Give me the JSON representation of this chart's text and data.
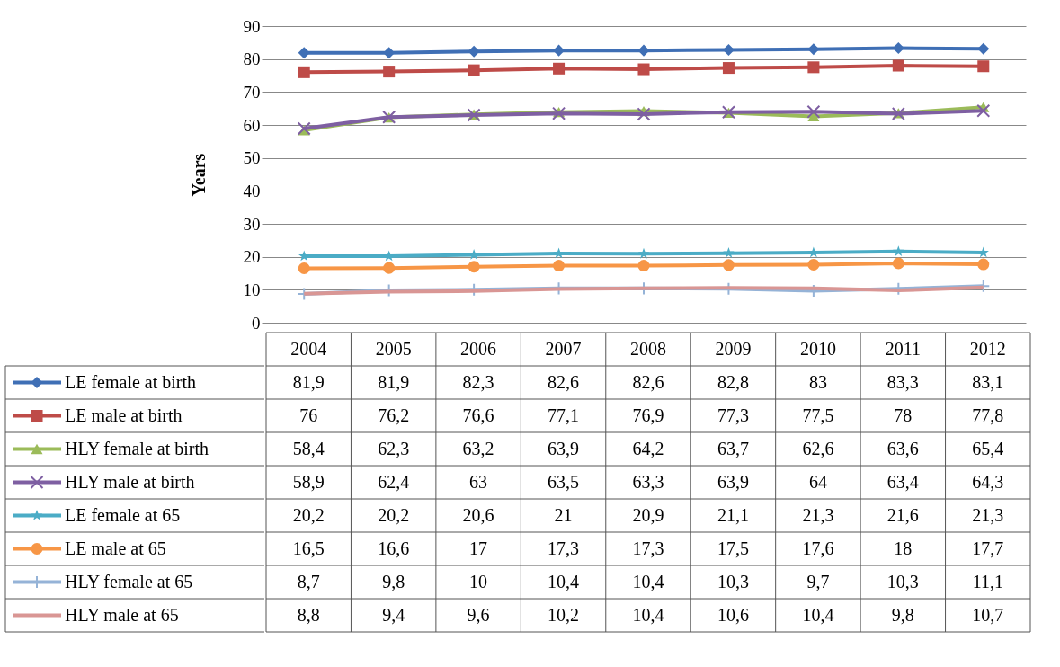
{
  "chart_data": {
    "type": "line",
    "ylabel": "Years",
    "categories": [
      "2004",
      "2005",
      "2006",
      "2007",
      "2008",
      "2009",
      "2010",
      "2011",
      "2012"
    ],
    "ylim": [
      0,
      90
    ],
    "yticks": [
      0,
      10,
      20,
      30,
      40,
      50,
      60,
      70,
      80,
      90
    ],
    "grid": "y",
    "legend": "bottom",
    "series": [
      {
        "name": "LE female at birth",
        "color": "#3f6fb5",
        "marker": "diamond",
        "values": [
          81.9,
          81.9,
          82.3,
          82.6,
          82.6,
          82.8,
          83,
          83.3,
          83.1
        ],
        "value_labels": [
          "81,9",
          "81,9",
          "82,3",
          "82,6",
          "82,6",
          "82,8",
          "83",
          "83,3",
          "83,1"
        ]
      },
      {
        "name": "LE male at birth",
        "color": "#be4b48",
        "marker": "square",
        "values": [
          76,
          76.2,
          76.6,
          77.1,
          76.9,
          77.3,
          77.5,
          78,
          77.8
        ],
        "value_labels": [
          "76",
          "76,2",
          "76,6",
          "77,1",
          "76,9",
          "77,3",
          "77,5",
          "78",
          "77,8"
        ]
      },
      {
        "name": "HLY female at birth",
        "color": "#9bbb59",
        "marker": "triangle",
        "values": [
          58.4,
          62.3,
          63.2,
          63.9,
          64.2,
          63.7,
          62.6,
          63.6,
          65.4
        ],
        "value_labels": [
          "58,4",
          "62,3",
          "63,2",
          "63,9",
          "64,2",
          "63,7",
          "62,6",
          "63,6",
          "65,4"
        ]
      },
      {
        "name": "HLY male at birth",
        "color": "#7e5fa2",
        "marker": "cross",
        "values": [
          58.9,
          62.4,
          63,
          63.5,
          63.3,
          63.9,
          64,
          63.4,
          64.3
        ],
        "value_labels": [
          "58,9",
          "62,4",
          "63",
          "63,5",
          "63,3",
          "63,9",
          "64",
          "63,4",
          "64,3"
        ]
      },
      {
        "name": "LE female at 65",
        "color": "#4bacc6",
        "marker": "star",
        "values": [
          20.2,
          20.2,
          20.6,
          21,
          20.9,
          21.1,
          21.3,
          21.6,
          21.3
        ],
        "value_labels": [
          "20,2",
          "20,2",
          "20,6",
          "21",
          "20,9",
          "21,1",
          "21,3",
          "21,6",
          "21,3"
        ]
      },
      {
        "name": "LE male at 65",
        "color": "#f79646",
        "marker": "circle",
        "values": [
          16.5,
          16.6,
          17,
          17.3,
          17.3,
          17.5,
          17.6,
          18,
          17.7
        ],
        "value_labels": [
          "16,5",
          "16,6",
          "17",
          "17,3",
          "17,3",
          "17,5",
          "17,6",
          "18",
          "17,7"
        ]
      },
      {
        "name": "HLY female at 65",
        "color": "#95b3d7",
        "marker": "plus",
        "values": [
          8.7,
          9.8,
          10,
          10.4,
          10.4,
          10.3,
          9.7,
          10.3,
          11.1
        ],
        "value_labels": [
          "8,7",
          "9,8",
          "10",
          "10,4",
          "10,4",
          "10,3",
          "9,7",
          "10,3",
          "11,1"
        ]
      },
      {
        "name": "HLY male at 65",
        "color": "#d99694",
        "marker": "none",
        "values": [
          8.8,
          9.4,
          9.6,
          10.2,
          10.4,
          10.6,
          10.4,
          9.8,
          10.7
        ],
        "value_labels": [
          "8,8",
          "9,4",
          "9,6",
          "10,2",
          "10,4",
          "10,6",
          "10,4",
          "9,8",
          "10,7"
        ]
      }
    ]
  }
}
